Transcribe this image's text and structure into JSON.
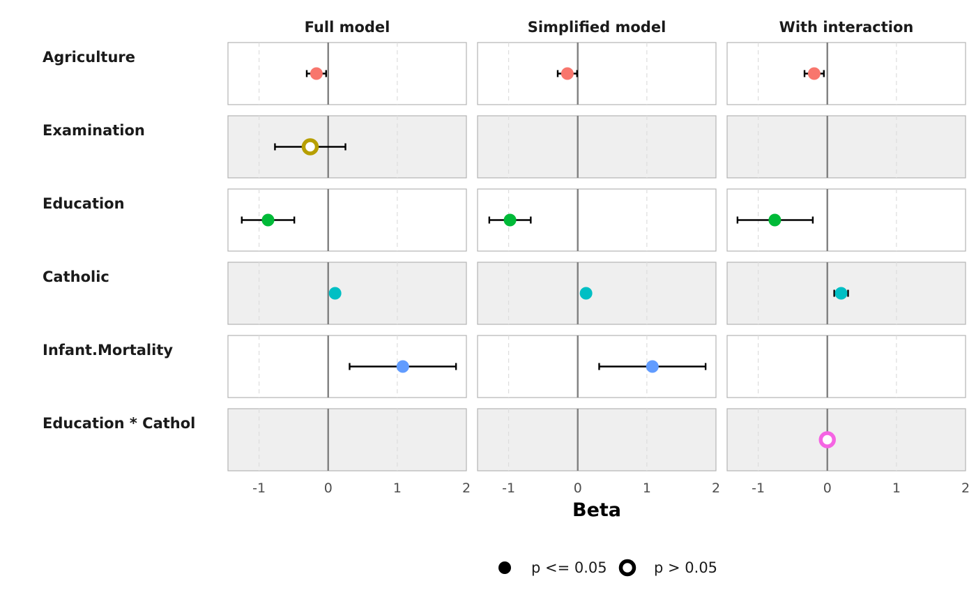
{
  "chart_data": {
    "type": "scatter",
    "subtype": "coefficient-plot-facets",
    "xlabel": "Beta",
    "xlim": [
      -1.45,
      2
    ],
    "x_ticks": [
      -1,
      0,
      1,
      2
    ],
    "x_tick_labels": [
      "-1",
      "0",
      "1",
      "2"
    ],
    "reference_line": 0,
    "facets": [
      "Full model",
      "Simplified model",
      "With interaction"
    ],
    "terms": [
      "Agriculture",
      "Examination",
      "Education",
      "Catholic",
      "Infant.Mortality",
      "Education * Cathol"
    ],
    "term_colors": {
      "Agriculture": "#F8766D",
      "Examination": "#B79F00",
      "Education": "#00BA38",
      "Catholic": "#00BFC4",
      "Infant.Mortality": "#619CFF",
      "Education * Cathol": "#F564E3"
    },
    "points": [
      {
        "facet": "Full model",
        "term": "Agriculture",
        "estimate": -0.17,
        "low": -0.31,
        "high": -0.03,
        "significant": true
      },
      {
        "facet": "Full model",
        "term": "Examination",
        "estimate": -0.26,
        "low": -0.77,
        "high": 0.25,
        "significant": false
      },
      {
        "facet": "Full model",
        "term": "Education",
        "estimate": -0.87,
        "low": -1.25,
        "high": -0.49,
        "significant": true
      },
      {
        "facet": "Full model",
        "term": "Catholic",
        "estimate": 0.1,
        "low": 0.05,
        "high": 0.15,
        "significant": true
      },
      {
        "facet": "Full model",
        "term": "Infant.Mortality",
        "estimate": 1.08,
        "low": 0.31,
        "high": 1.85,
        "significant": true
      },
      {
        "facet": "Simplified model",
        "term": "Agriculture",
        "estimate": -0.15,
        "low": -0.29,
        "high": -0.01,
        "significant": true
      },
      {
        "facet": "Simplified model",
        "term": "Education",
        "estimate": -0.98,
        "low": -1.28,
        "high": -0.68,
        "significant": true
      },
      {
        "facet": "Simplified model",
        "term": "Catholic",
        "estimate": 0.12,
        "low": 0.07,
        "high": 0.17,
        "significant": true
      },
      {
        "facet": "Simplified model",
        "term": "Infant.Mortality",
        "estimate": 1.08,
        "low": 0.31,
        "high": 1.85,
        "significant": true
      },
      {
        "facet": "With interaction",
        "term": "Agriculture",
        "estimate": -0.19,
        "low": -0.33,
        "high": -0.05,
        "significant": true
      },
      {
        "facet": "With interaction",
        "term": "Education",
        "estimate": -0.76,
        "low": -1.3,
        "high": -0.21,
        "significant": true
      },
      {
        "facet": "With interaction",
        "term": "Catholic",
        "estimate": 0.2,
        "low": 0.1,
        "high": 0.3,
        "significant": true
      },
      {
        "facet": "With interaction",
        "term": "Education * Cathol",
        "estimate": 0.0,
        "low": -0.01,
        "high": 0.01,
        "significant": false
      }
    ],
    "legend": {
      "position": "bottom",
      "items": [
        {
          "label": "p <= 0.05",
          "shape": "filled-circle"
        },
        {
          "label": "p > 0.05",
          "shape": "open-circle"
        }
      ]
    },
    "grid": "vertical-dashed",
    "alternating_row_shading": true,
    "shading_color": "#EFEFEF"
  }
}
